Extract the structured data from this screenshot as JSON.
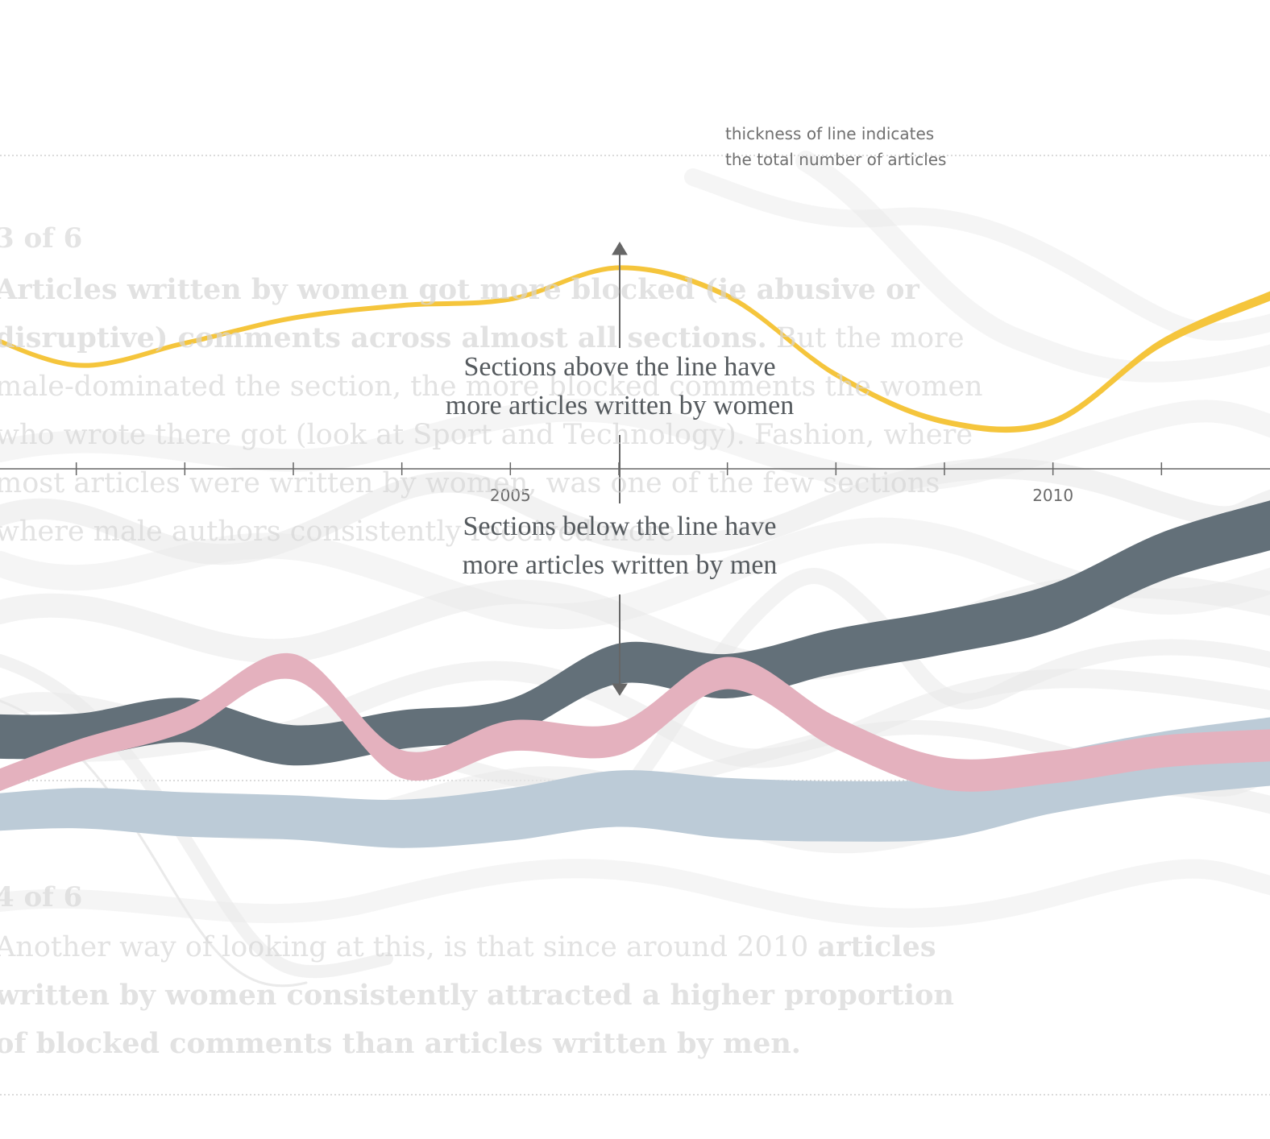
{
  "ghost_text": {
    "step_a": "3 of 6",
    "para_a_bold": "Articles written by women got more blocked (ie abusive or disruptive) comments across almost all sections.",
    "para_a_rest": " But the more male-dominated the section, the more blocked comments the women who wrote there got (look at Sport and Technology). Fashion, where most articles were written by women, was one of the few sections where male authors consistently received more",
    "step_b": "4 of 6",
    "para_b_plain": "Another way of looking at this, is that since around 2010 ",
    "para_b_bold": "articles written by women consistently attracted a higher proportion of blocked comments than articles written by men."
  },
  "annotations": {
    "thickness_note_line1": "thickness of line indicates",
    "thickness_note_line2": "the total number of articles",
    "above_line1": "Sections above the line have",
    "above_line2": "more articles written by women",
    "below_line1": "Sections below the line have",
    "below_line2": "more articles written by men"
  },
  "colors": {
    "yellow": "#f5c53c",
    "dark": "#637079",
    "pink": "#e4b1be",
    "blue": "#bccbd7",
    "ghost": "#e6e6e6",
    "axis": "#666666"
  },
  "chart_data": {
    "type": "line",
    "x_ticks": [
      2005,
      2010
    ],
    "x_range": [
      2000,
      2012
    ],
    "series": [
      {
        "color": "yellow",
        "x": [
          2000,
          2001,
          2002,
          2003,
          2004,
          2005,
          2006,
          2007,
          2008,
          2009,
          2010,
          2011,
          2012
        ],
        "y": [
          0.45,
          0.33,
          0.4,
          0.48,
          0.52,
          0.54,
          0.64,
          0.55,
          0.3,
          0.15,
          0.15,
          0.4,
          0.55
        ],
        "thickness": [
          6,
          6,
          6,
          6,
          6,
          6,
          6,
          7,
          7,
          7,
          8,
          10,
          12
        ]
      },
      {
        "color": "dark",
        "x": [
          2000,
          2001,
          2002,
          2003,
          2004,
          2005,
          2006,
          2007,
          2008,
          2009,
          2010,
          2011,
          2012
        ],
        "y": [
          -0.85,
          -0.85,
          -0.8,
          -0.88,
          -0.83,
          -0.79,
          -0.62,
          -0.66,
          -0.58,
          -0.52,
          -0.44,
          -0.28,
          -0.18
        ],
        "thickness": [
          55,
          55,
          55,
          50,
          48,
          45,
          50,
          55,
          55,
          55,
          58,
          60,
          62
        ]
      },
      {
        "color": "pink",
        "x": [
          2000,
          2001,
          2002,
          2003,
          2004,
          2005,
          2006,
          2007,
          2008,
          2009,
          2010,
          2011,
          2012
        ],
        "y": [
          -1.03,
          -0.9,
          -0.8,
          -0.63,
          -0.94,
          -0.85,
          -0.86,
          -0.65,
          -0.84,
          -0.97,
          -0.95,
          -0.9,
          -0.88
        ],
        "thickness": [
          28,
          28,
          30,
          32,
          35,
          38,
          40,
          40,
          40,
          40,
          40,
          40,
          40
        ]
      },
      {
        "color": "blue",
        "x": [
          2000,
          2001,
          2002,
          2003,
          2004,
          2005,
          2006,
          2007,
          2008,
          2009,
          2010,
          2011,
          2012
        ],
        "y": [
          -1.1,
          -1.08,
          -1.1,
          -1.11,
          -1.13,
          -1.1,
          -1.05,
          -1.08,
          -1.09,
          -1.08,
          -1.0,
          -0.94,
          -0.9
        ],
        "thickness": [
          45,
          50,
          55,
          55,
          60,
          65,
          70,
          75,
          75,
          75,
          75,
          80,
          85
        ]
      }
    ]
  }
}
